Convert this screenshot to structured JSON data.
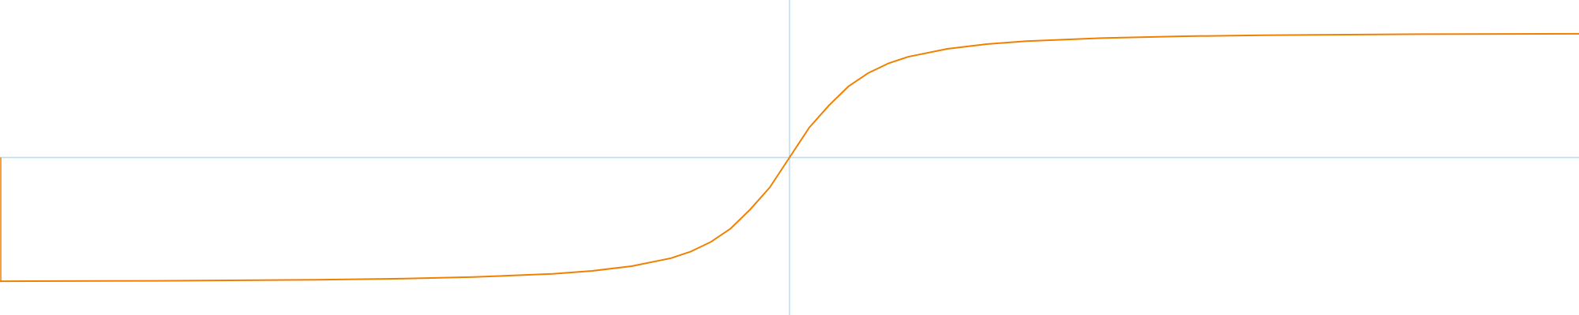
{
  "chart_data": {
    "type": "line",
    "title": "",
    "xlabel": "",
    "ylabel": "",
    "grid": false,
    "xlim": [
      -10,
      10
    ],
    "ylim": [
      -2,
      2
    ],
    "colors": {
      "axis": "#b8dcef",
      "series": "#f08000",
      "background": "#ffffff"
    },
    "series": [
      {
        "x": [
          -10,
          -8,
          -6,
          -5,
          -4,
          -3,
          -2.5,
          -2,
          -1.5,
          -1.25,
          -1,
          -0.75,
          -0.5,
          -0.25,
          0,
          0.25,
          0.5,
          0.75,
          1,
          1.25,
          1.5,
          2,
          2.5,
          3,
          4,
          5,
          6,
          8,
          10
        ],
        "y": [
          -1.571,
          -1.566,
          -1.553,
          -1.54,
          -1.518,
          -1.478,
          -1.44,
          -1.38,
          -1.278,
          -1.194,
          -1.074,
          -0.906,
          -0.662,
          -0.38,
          0,
          0.38,
          0.662,
          0.906,
          1.074,
          1.194,
          1.278,
          1.38,
          1.44,
          1.478,
          1.518,
          1.54,
          1.553,
          1.566,
          1.571
        ]
      }
    ]
  }
}
